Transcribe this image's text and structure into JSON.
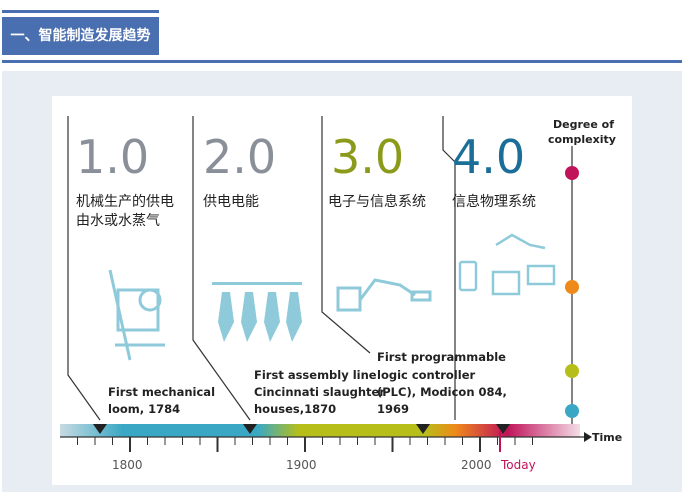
{
  "header": {
    "title": "一、智能制造发展趋势"
  },
  "figure": {
    "stages": [
      {
        "version": "1.0",
        "label_line1": "机械生产的供电",
        "label_line2": "由水或水蒸气",
        "color": "#8a9099",
        "event_line1": "First mechanical",
        "event_line2": "loom, 1784",
        "event_line3": ""
      },
      {
        "version": "2.0",
        "label_line1": "供电电能",
        "label_line2": "",
        "color": "#8a9099",
        "event_line1": "First assembly line",
        "event_line2": "Cincinnati slaughter",
        "event_line3": "houses,1870"
      },
      {
        "version": "3.0",
        "label_line1": "电子与信息系统",
        "label_line2": "",
        "color": "#8c9a1c",
        "event_line1": "First programmable",
        "event_line2": "logic controller",
        "event_line3": "(PLC), Modicon 084,",
        "event_line4": "1969"
      },
      {
        "version": "4.0",
        "label_line1": "信息物理系统",
        "label_line2": "",
        "color": "#1a6e98"
      }
    ],
    "complexity_axis": {
      "label_line1": "Degree of",
      "label_line2": "complexity",
      "dot_colors": [
        "#c0135a",
        "#ee8a1a",
        "#b6bf1a",
        "#3aa8c4"
      ]
    },
    "time_axis": {
      "label": "Time",
      "ticks": [
        "1800",
        "1900",
        "2000"
      ],
      "today": "Today",
      "today_color": "#c0135a"
    }
  }
}
